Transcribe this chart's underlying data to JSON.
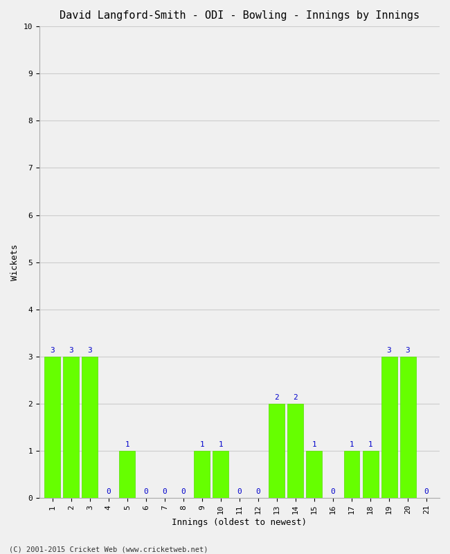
{
  "title": "David Langford-Smith - ODI - Bowling - Innings by Innings",
  "xlabel": "Innings (oldest to newest)",
  "ylabel": "Wickets",
  "innings": [
    1,
    2,
    3,
    4,
    5,
    6,
    7,
    8,
    9,
    10,
    11,
    12,
    13,
    14,
    15,
    16,
    17,
    18,
    19,
    20,
    21
  ],
  "wickets": [
    3,
    3,
    3,
    0,
    1,
    0,
    0,
    0,
    1,
    1,
    0,
    0,
    2,
    2,
    1,
    0,
    1,
    1,
    3,
    3,
    0
  ],
  "bar_color": "#66ff00",
  "bar_edge_color": "#55dd00",
  "label_color": "#0000cc",
  "background_color": "#f0f0f0",
  "ylim": [
    0,
    10
  ],
  "yticks": [
    0,
    1,
    2,
    3,
    4,
    5,
    6,
    7,
    8,
    9,
    10
  ],
  "grid_color": "#cccccc",
  "title_fontsize": 11,
  "axis_label_fontsize": 9,
  "tick_fontsize": 8,
  "bar_label_fontsize": 8,
  "footer": "(C) 2001-2015 Cricket Web (www.cricketweb.net)"
}
